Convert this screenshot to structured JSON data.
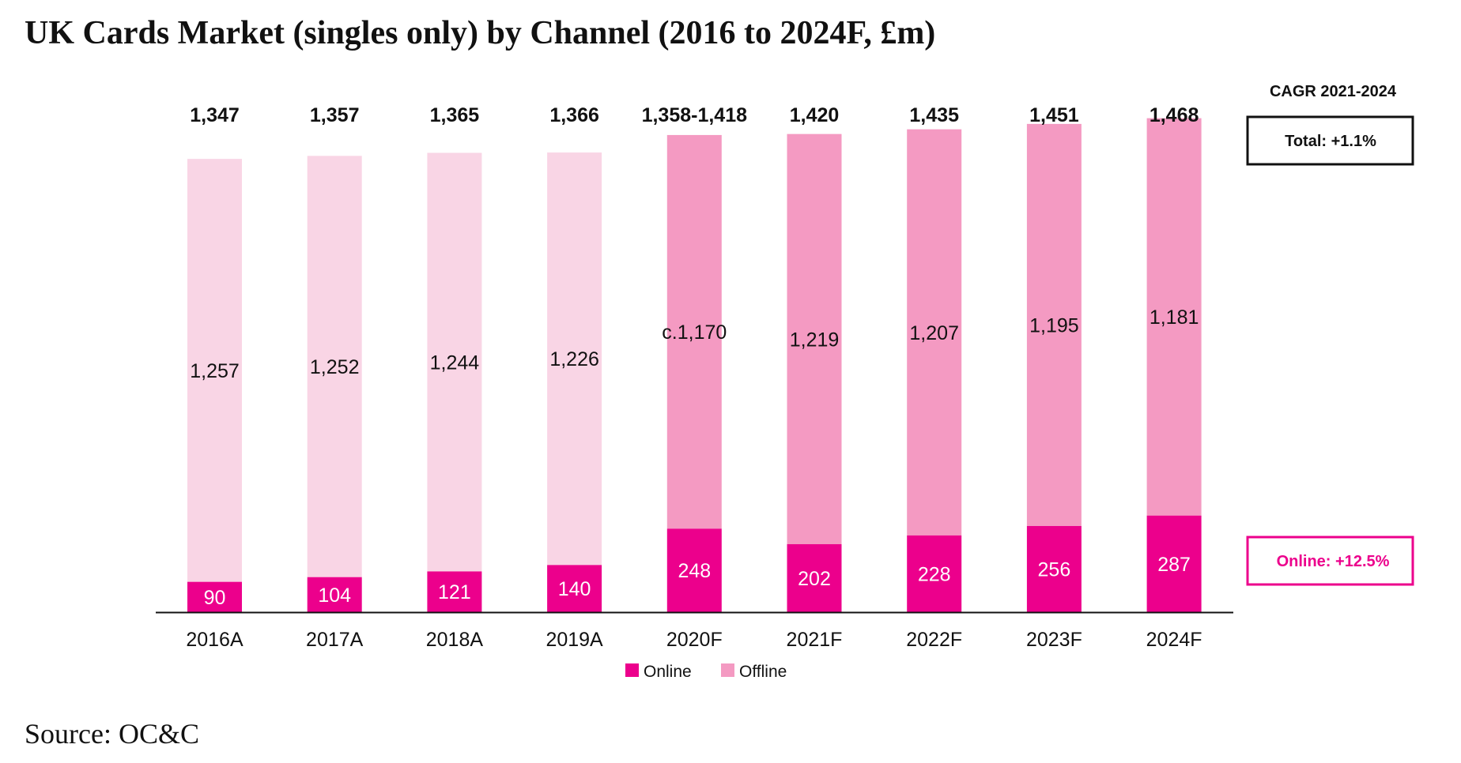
{
  "title": "UK Cards Market (singles only) by Channel (2016 to 2024F, £m)",
  "source": "Source: OC&C",
  "colors": {
    "online": "#ec008c",
    "offline_actual": "#f9d5e5",
    "offline_forecast": "#f49ac2",
    "axis": "#111111",
    "text": "#111111"
  },
  "cagr": {
    "heading": "CAGR 2021-2024",
    "total_label": "Total: +1.1%",
    "online_label": "Online: +12.5%"
  },
  "chart_data": {
    "type": "bar",
    "stacked": true,
    "categories": [
      "2016A",
      "2017A",
      "2018A",
      "2019A",
      "2020F",
      "2021F",
      "2022F",
      "2023F",
      "2024F"
    ],
    "series": [
      {
        "name": "Online",
        "values": [
          90,
          104,
          121,
          140,
          248,
          202,
          228,
          256,
          287
        ],
        "labels": [
          "90",
          "104",
          "121",
          "140",
          "248",
          "202",
          "228",
          "256",
          "287"
        ]
      },
      {
        "name": "Offline",
        "values": [
          1257,
          1252,
          1244,
          1226,
          1170,
          1219,
          1207,
          1195,
          1181
        ],
        "labels": [
          "1,257",
          "1,252",
          "1,244",
          "1,226",
          "c.1,170",
          "1,219",
          "1,207",
          "1,195",
          "1,181"
        ]
      }
    ],
    "totals": [
      1347,
      1357,
      1365,
      1366,
      1418,
      1420,
      1435,
      1451,
      1468
    ],
    "total_labels": [
      "1,347",
      "1,357",
      "1,365",
      "1,366",
      "1,358-1,418",
      "1,420",
      "1,435",
      "1,451",
      "1,468"
    ],
    "forecast_from_index": 4,
    "ylim": [
      0,
      1500
    ],
    "grid": false,
    "legend": "bottom-center"
  }
}
